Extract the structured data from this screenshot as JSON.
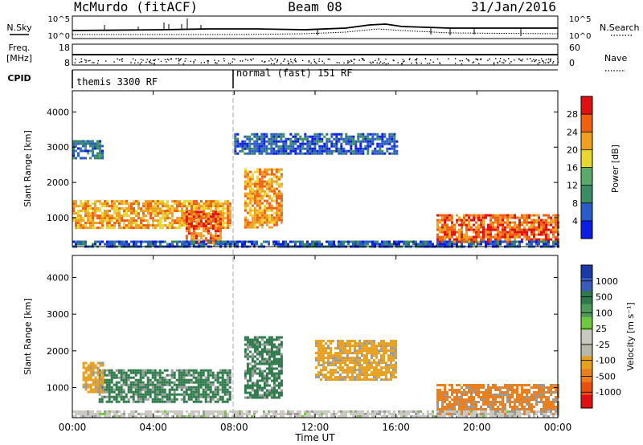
{
  "header": {
    "station": "McMurdo (fitACF)",
    "beam": "Beam 08",
    "date": "31/Jan/2016"
  },
  "param_panels": {
    "nsky_label": "N.Sky",
    "nsearch_label": "N.Search",
    "noise_ticks_left": [
      "10^5",
      "10^0"
    ],
    "noise_ticks_right": [
      "10^5",
      "10^0"
    ],
    "freq_label": "Freq.",
    "freq_unit": "[MHz]",
    "freq_ticks": [
      "18",
      "8"
    ],
    "nave_label": "Nave",
    "nave_ticks": [
      "60",
      "0"
    ],
    "cpid_label": "CPID",
    "modes": [
      {
        "label": "themis 3300 RF",
        "start_hour": 0,
        "end_hour": 8
      },
      {
        "label": "normal (fast) 151 RF",
        "start_hour": 8,
        "end_hour": 24
      }
    ]
  },
  "colors": {
    "power_scale": [
      "#0a1ee6",
      "#2a5cc9",
      "#3a8c64",
      "#5aaa6a",
      "#e8d632",
      "#f0a020",
      "#f06010",
      "#e01010"
    ],
    "velocity_scale": [
      "#1a3aa8",
      "#3a5cb8",
      "#2f7a4a",
      "#4f9a5a",
      "#70c840",
      "#c8c8c0",
      "#b8b8a8",
      "#e8a020",
      "#e88020",
      "#e85010",
      "#e01010"
    ],
    "ground_scatter": "#9a9a9a"
  },
  "chart_data": [
    {
      "type": "heatmap",
      "title": "",
      "xlabel": "",
      "ylabel": "Slant Range [km]",
      "xlim": [
        0,
        24
      ],
      "ylim": [
        180,
        4600
      ],
      "x_tick_labels": [
        "00:00",
        "04:00",
        "08:00",
        "12:00",
        "16:00",
        "20:00",
        "00:00"
      ],
      "y_ticks": [
        1000,
        2000,
        3000,
        4000
      ],
      "colorbar": {
        "label": "Power [dB]",
        "ticks": [
          "28",
          "24",
          "20",
          "16",
          "12",
          "8",
          "4"
        ]
      },
      "regions": [
        {
          "t0": 0.0,
          "t1": 7.8,
          "r0": 700,
          "r1": 1500,
          "level": 24
        },
        {
          "t0": 5.6,
          "t1": 7.3,
          "r0": 300,
          "r1": 1200,
          "level": 28
        },
        {
          "t0": 8.5,
          "t1": 10.3,
          "r0": 700,
          "r1": 2400,
          "level": 24
        },
        {
          "t0": 0.0,
          "t1": 1.5,
          "r0": 2700,
          "r1": 3200,
          "level": 10
        },
        {
          "t0": 8.0,
          "t1": 16.0,
          "r0": 2800,
          "r1": 3400,
          "level": 8
        },
        {
          "t0": 18.0,
          "t1": 24.0,
          "r0": 300,
          "r1": 1100,
          "level": 28
        },
        {
          "t0": 0.0,
          "t1": 24.0,
          "r0": 200,
          "r1": 350,
          "level": 8
        }
      ]
    },
    {
      "type": "heatmap",
      "title": "",
      "xlabel": "Time UT",
      "ylabel": "Slant Range [km]",
      "xlim": [
        0,
        24
      ],
      "ylim": [
        180,
        4600
      ],
      "x_tick_labels": [
        "00:00",
        "04:00",
        "08:00",
        "12:00",
        "16:00",
        "20:00",
        "00:00"
      ],
      "y_ticks": [
        1000,
        2000,
        3000,
        4000
      ],
      "colorbar": {
        "label": "Velocity [m s⁻¹]",
        "ticks": [
          "1000",
          "500",
          "100",
          "25",
          "-25",
          "-100",
          "-500",
          "-1000"
        ]
      },
      "regions": [
        {
          "t0": 1.3,
          "t1": 7.8,
          "r0": 600,
          "r1": 1500,
          "level": 500
        },
        {
          "t0": 8.5,
          "t1": 10.3,
          "r0": 700,
          "r1": 2400,
          "level": 500
        },
        {
          "t0": 0.5,
          "t1": 1.5,
          "r0": 900,
          "r1": 1700,
          "level": -100
        },
        {
          "t0": 12.0,
          "t1": 16.0,
          "r0": 1200,
          "r1": 2300,
          "level": -100
        },
        {
          "t0": 18.0,
          "t1": 24.0,
          "r0": 300,
          "r1": 1100,
          "level": -500
        },
        {
          "t0": 0.0,
          "t1": 24.0,
          "r0": 200,
          "r1": 380,
          "level": -25
        }
      ]
    }
  ]
}
